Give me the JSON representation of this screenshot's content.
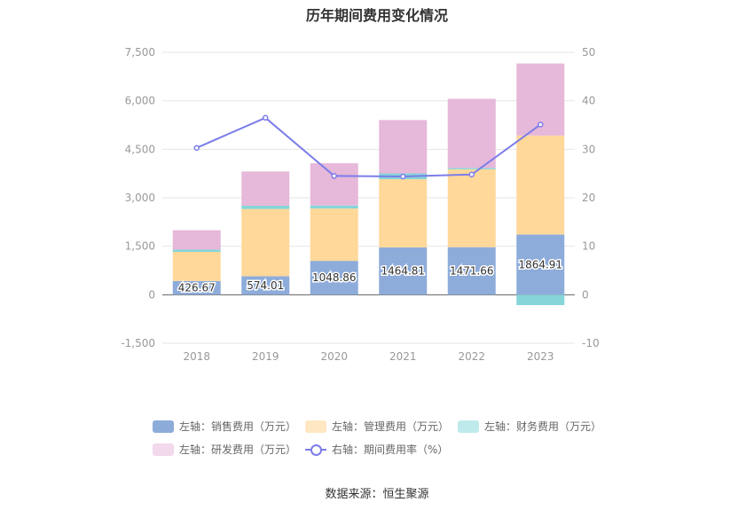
{
  "chart_data": {
    "type": "bar",
    "title": "历年期间费用变化情况",
    "categories": [
      "2018",
      "2019",
      "2020",
      "2021",
      "2022",
      "2023"
    ],
    "series": [
      {
        "name": "左轴：销售费用（万元）",
        "axis": "left",
        "stack": true,
        "color": "#8EACDA",
        "values": [
          426.67,
          574.01,
          1048.86,
          1464.81,
          1471.66,
          1864.91
        ]
      },
      {
        "name": "左轴：管理费用（万元）",
        "axis": "left",
        "stack": true,
        "color": "#FFD89A",
        "values": [
          900,
          2080,
          1620,
          2110,
          2410,
          3060
        ]
      },
      {
        "name": "左轴：财务费用（万元）",
        "axis": "left",
        "stack": true,
        "color": "#86D5D8",
        "values": [
          70,
          100,
          90,
          180,
          40,
          -320
        ]
      },
      {
        "name": "左轴：研发费用（万元）",
        "axis": "left",
        "stack": true,
        "color": "#E6B8D9",
        "values": [
          600,
          1060,
          1310,
          1650,
          2140,
          2230
        ]
      },
      {
        "name": "右轴：期间费用率（%）",
        "axis": "right",
        "type": "line",
        "color": "#7B7DE8",
        "values": [
          30.3,
          36.5,
          24.5,
          24.4,
          24.8,
          35.1
        ]
      }
    ],
    "data_labels": [
      "426.67",
      "574.01",
      "1048.86",
      "1464.81",
      "1471.66",
      "1864.91"
    ],
    "left_axis": {
      "ticks": [
        "7,500",
        "6,000",
        "4,500",
        "3,000",
        "1,500",
        "0",
        "-1,500"
      ],
      "ylim": [
        -1500,
        7500
      ]
    },
    "right_axis": {
      "ticks": [
        "50",
        "40",
        "30",
        "20",
        "10",
        "0",
        "-10"
      ],
      "ylim": [
        -10,
        50
      ]
    },
    "grid": true,
    "legend_position": "bottom"
  },
  "legend": [
    {
      "label": "左轴：销售费用（万元）",
      "color": "#8EACDA",
      "kind": "box"
    },
    {
      "label": "左轴：管理费用（万元）",
      "color": "#FFE7C2",
      "kind": "box"
    },
    {
      "label": "左轴：财务费用（万元）",
      "color": "#BFEAEB",
      "kind": "box"
    },
    {
      "label": "左轴：研发费用（万元）",
      "color": "#F2D9EC",
      "kind": "box"
    },
    {
      "label": "右轴：期间费用率（%）",
      "color": "#7B7DE8",
      "kind": "line"
    }
  ],
  "source": "数据来源：恒生聚源"
}
